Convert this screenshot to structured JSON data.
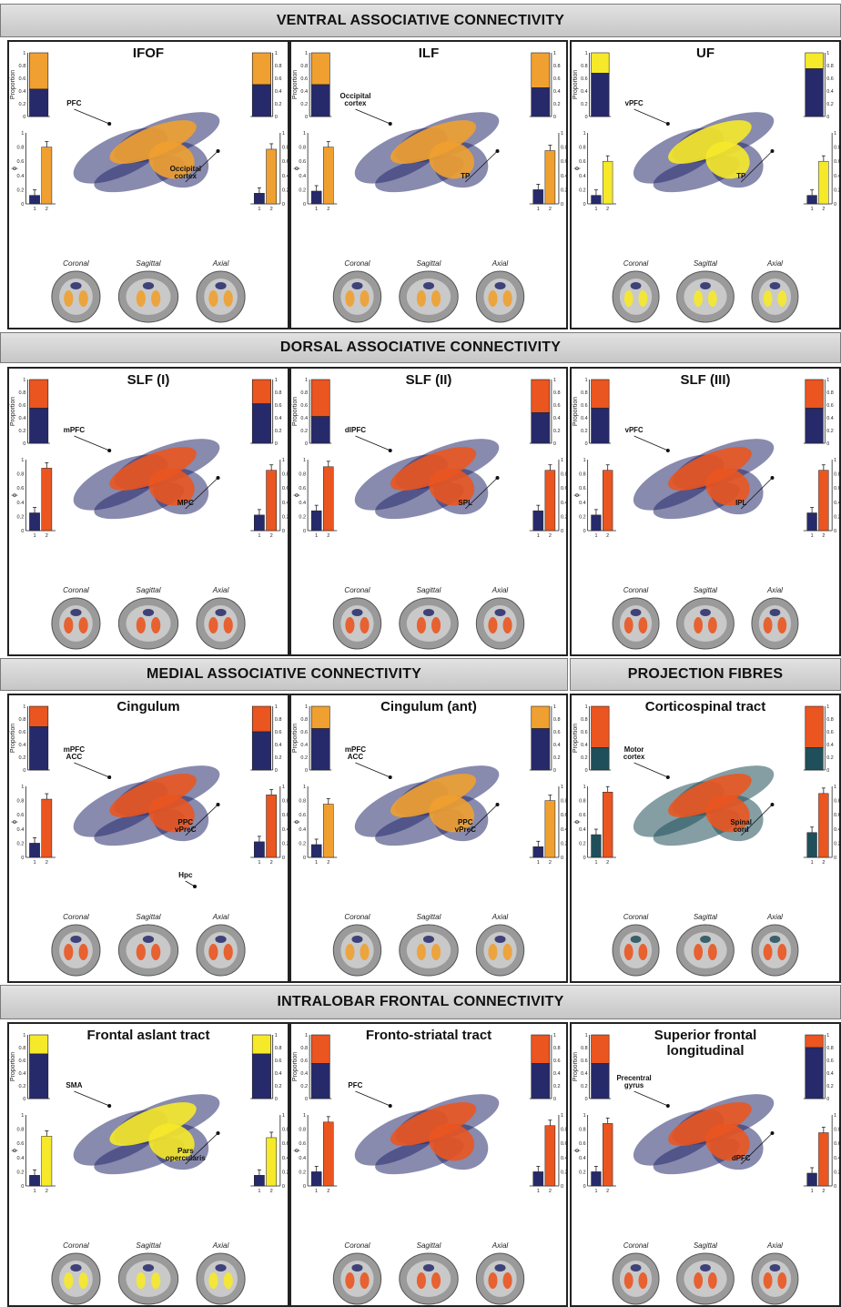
{
  "sections": [
    {
      "title": "VENTRAL ASSOCIATIVE CONNECTIVITY"
    },
    {
      "title": "DORSAL ASSOCIATIVE CONNECTIVITY"
    },
    {
      "title": "MEDIAL ASSOCIATIVE CONNECTIVITY"
    },
    {
      "title": "PROJECTION FIBRES"
    },
    {
      "title": "INTRALOBAR FRONTAL CONNECTIVITY"
    }
  ],
  "common": {
    "proportion_label": "Proportion",
    "phi_label": "ϕ",
    "prop_ticks": [
      "0",
      "0.2",
      "0.4",
      "0.6",
      "0.8",
      "1"
    ],
    "phi_ticks": [
      "0",
      "0.2",
      "0.4",
      "0.6",
      "0.8",
      "1"
    ],
    "cat_ticks": [
      "1",
      "2"
    ],
    "views": [
      "Coronal",
      "Sagittal",
      "Axial"
    ]
  },
  "colors": {
    "navy": "#262a6b",
    "teal": "#1f4f5a",
    "orange_light": "#f0a030",
    "orange_red": "#ea5520",
    "yellow": "#f6e92a",
    "green": "#8ccf2a"
  },
  "panels": [
    {
      "id": "ifof",
      "title_lines": [
        "IFOF"
      ],
      "accent": "#f0a030",
      "base": "#262a6b",
      "chart_data": {
        "type": "bar",
        "left": {
          "proportion": 0.43,
          "phi": [
            0.12,
            0.8
          ]
        },
        "right": {
          "proportion": 0.5,
          "phi": [
            0.15,
            0.77
          ]
        }
      },
      "labels": [
        {
          "lines": [
            "PFC"
          ]
        },
        {
          "lines": [
            "Occipital",
            "cortex"
          ]
        }
      ]
    },
    {
      "id": "ilf",
      "title_lines": [
        "ILF"
      ],
      "accent": "#f0a030",
      "base": "#262a6b",
      "chart_data": {
        "type": "bar",
        "left": {
          "proportion": 0.5,
          "phi": [
            0.18,
            0.8
          ]
        },
        "right": {
          "proportion": 0.45,
          "phi": [
            0.2,
            0.75
          ]
        }
      },
      "labels": [
        {
          "lines": [
            "Occipital",
            "cortex"
          ]
        },
        {
          "lines": [
            "TP"
          ]
        }
      ]
    },
    {
      "id": "uf",
      "title_lines": [
        "UF"
      ],
      "accent": "#f6e92a",
      "base": "#262a6b",
      "chart_data": {
        "type": "bar",
        "left": {
          "proportion": 0.68,
          "phi": [
            0.12,
            0.6
          ]
        },
        "right": {
          "proportion": 0.75,
          "phi": [
            0.12,
            0.6
          ]
        }
      },
      "labels": [
        {
          "lines": [
            "vPFC"
          ]
        },
        {
          "lines": [
            "TP"
          ]
        }
      ]
    },
    {
      "id": "slf1",
      "title_lines": [
        "SLF (I)"
      ],
      "accent": "#ea5520",
      "base": "#262a6b",
      "chart_data": {
        "type": "bar",
        "left": {
          "proportion": 0.55,
          "phi": [
            0.25,
            0.88
          ]
        },
        "right": {
          "proportion": 0.62,
          "phi": [
            0.22,
            0.85
          ]
        }
      },
      "labels": [
        {
          "lines": [
            "mPFC"
          ]
        },
        {
          "lines": [
            "MPC"
          ]
        }
      ]
    },
    {
      "id": "slf2",
      "title_lines": [
        "SLF (II)"
      ],
      "accent": "#ea5520",
      "base": "#262a6b",
      "chart_data": {
        "type": "bar",
        "left": {
          "proportion": 0.42,
          "phi": [
            0.28,
            0.9
          ]
        },
        "right": {
          "proportion": 0.48,
          "phi": [
            0.28,
            0.85
          ]
        }
      },
      "labels": [
        {
          "lines": [
            "dlPFC"
          ]
        },
        {
          "lines": [
            "SPL"
          ]
        }
      ]
    },
    {
      "id": "slf3",
      "title_lines": [
        "SLF (III)"
      ],
      "accent": "#ea5520",
      "base": "#262a6b",
      "chart_data": {
        "type": "bar",
        "left": {
          "proportion": 0.55,
          "phi": [
            0.22,
            0.85
          ]
        },
        "right": {
          "proportion": 0.55,
          "phi": [
            0.25,
            0.85
          ]
        }
      },
      "labels": [
        {
          "lines": [
            "vPFC"
          ]
        },
        {
          "lines": [
            "IPL"
          ]
        }
      ]
    },
    {
      "id": "cing",
      "title_lines": [
        "Cingulum"
      ],
      "accent": "#ea5520",
      "base": "#262a6b",
      "chart_data": {
        "type": "bar",
        "left": {
          "proportion": 0.68,
          "phi": [
            0.2,
            0.82
          ]
        },
        "right": {
          "proportion": 0.6,
          "phi": [
            0.22,
            0.88
          ]
        }
      },
      "labels": [
        {
          "lines": [
            "mPFC",
            "ACC"
          ]
        },
        {
          "lines": [
            "PPC",
            "vPreC"
          ]
        },
        {
          "lines": [
            "Hpc"
          ]
        }
      ]
    },
    {
      "id": "cinga",
      "title_lines": [
        "Cingulum (ant)"
      ],
      "accent": "#f0a030",
      "base": "#262a6b",
      "chart_data": {
        "type": "bar",
        "left": {
          "proportion": 0.65,
          "phi": [
            0.18,
            0.75
          ]
        },
        "right": {
          "proportion": 0.65,
          "phi": [
            0.15,
            0.8
          ]
        }
      },
      "labels": [
        {
          "lines": [
            "mPFC",
            "ACC"
          ]
        },
        {
          "lines": [
            "PPC",
            "vPreC"
          ]
        }
      ]
    },
    {
      "id": "cst",
      "title_lines": [
        "Corticospinal tract"
      ],
      "accent": "#ea5520",
      "base": "#1f4f5a",
      "chart_data": {
        "type": "bar",
        "left": {
          "proportion": 0.35,
          "phi": [
            0.32,
            0.92
          ]
        },
        "right": {
          "proportion": 0.35,
          "phi": [
            0.35,
            0.9
          ]
        }
      },
      "labels": [
        {
          "lines": [
            "Motor",
            "cortex"
          ]
        },
        {
          "lines": [
            "Spinal",
            "cord"
          ]
        }
      ]
    },
    {
      "id": "fat",
      "title_lines": [
        "Frontal aslant tract"
      ],
      "accent": "#f6e92a",
      "base": "#262a6b",
      "chart_data": {
        "type": "bar",
        "left": {
          "proportion": 0.7,
          "phi": [
            0.15,
            0.7
          ]
        },
        "right": {
          "proportion": 0.7,
          "phi": [
            0.15,
            0.68
          ]
        }
      },
      "labels": [
        {
          "lines": [
            "SMA"
          ]
        },
        {
          "lines": [
            "Pars",
            "opercularis"
          ]
        }
      ]
    },
    {
      "id": "fst",
      "title_lines": [
        "Fronto-striatal tract"
      ],
      "accent": "#ea5520",
      "base": "#262a6b",
      "chart_data": {
        "type": "bar",
        "left": {
          "proportion": 0.55,
          "phi": [
            0.2,
            0.9
          ]
        },
        "right": {
          "proportion": 0.55,
          "phi": [
            0.2,
            0.85
          ]
        }
      },
      "labels": [
        {
          "lines": [
            "PFC"
          ]
        }
      ]
    },
    {
      "id": "sfl",
      "title_lines": [
        "Superior frontal",
        "longitudinal"
      ],
      "accent": "#ea5520",
      "base": "#262a6b",
      "chart_data": {
        "type": "bar",
        "left": {
          "proportion": 0.55,
          "phi": [
            0.2,
            0.88
          ]
        },
        "right": {
          "proportion": 0.8,
          "phi": [
            0.18,
            0.75
          ]
        }
      },
      "labels": [
        {
          "lines": [
            "Precentral",
            "gyrus"
          ]
        },
        {
          "lines": [
            "dPFC"
          ]
        }
      ]
    }
  ]
}
